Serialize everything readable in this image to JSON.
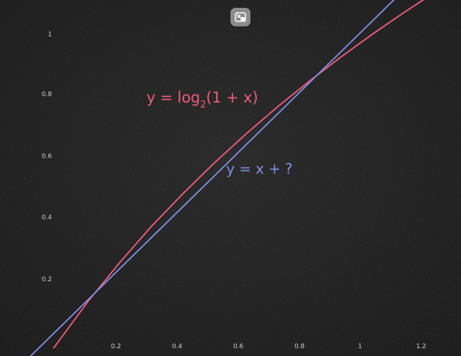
{
  "chart_data": {
    "type": "line",
    "title": "",
    "xlabel": "",
    "ylabel": "",
    "xlim": [
      -0.18,
      1.28
    ],
    "ylim": [
      -0.04,
      1.11
    ],
    "x_ticks": [
      "0.2",
      "0.4",
      "0.6",
      "0.8",
      "1",
      "1.2"
    ],
    "y_ticks": [
      "0.2",
      "0.4",
      "0.6",
      "0.8",
      "1"
    ],
    "grid": false,
    "series": [
      {
        "name": "y = log2(1 + x)",
        "label_parts": [
          "y = log",
          "2",
          "(1 + x)"
        ],
        "function": "log2(1 + x)",
        "color": "#ef5d7e",
        "x": [
          -0.01,
          0.1,
          0.2,
          0.3,
          0.4,
          0.5,
          0.6,
          0.7,
          0.8,
          0.9,
          1.0,
          1.1,
          1.17
        ],
        "y": [
          -0.014,
          0.138,
          0.263,
          0.379,
          0.485,
          0.585,
          0.678,
          0.766,
          0.848,
          0.926,
          1.0,
          1.07,
          1.117
        ]
      },
      {
        "name": "y = x + ?",
        "function": "x + 0.0430",
        "color": "#7f8fe3",
        "x": [
          -0.1,
          1.07
        ],
        "y": [
          -0.057,
          1.113
        ]
      }
    ],
    "colors": {
      "axes": "#f3e27a",
      "background": "#1b1b1b",
      "tick_text": "#cfcfcf"
    }
  },
  "ui": {
    "pip_icon": "picture-in-picture-exit-icon"
  }
}
